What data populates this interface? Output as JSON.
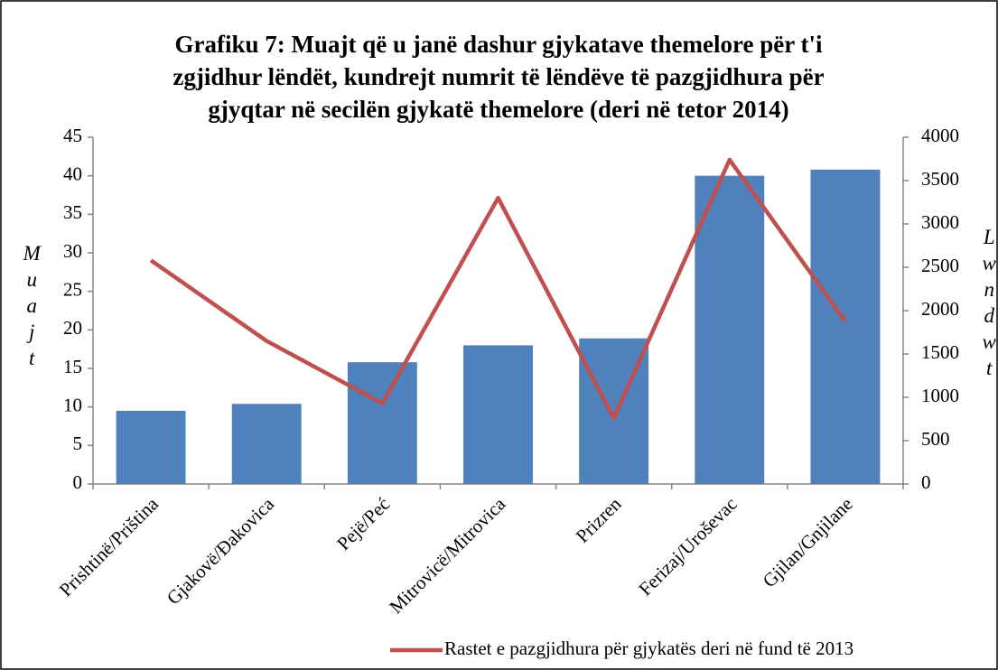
{
  "chart_data": {
    "type": "bar+line",
    "title": [
      "Grafiku 7: Muajt që u janë dashur gjykatave themelore për t'i",
      "zgjidhur lëndët, kundrejt numrit të lëndëve të pazgjidhura për",
      "gjyqtar në secilën gjykatë themelore (deri në tetor 2014)"
    ],
    "ylabel": "Muajt",
    "y2label": "Lwndwt",
    "categories": [
      "Prishtinë/Priština",
      "Gjakovë/Đakovica",
      "Pejë/Peć",
      "Mitrovicë/Mitrovica",
      "Prizren",
      "Ferizaj/Uroševac",
      "Gjilan/Gnjilane"
    ],
    "series": [
      {
        "type": "bar",
        "color": "#4f81bd",
        "values": [
          9.5,
          10.4,
          15.8,
          18,
          18.9,
          40,
          40.8
        ]
      },
      {
        "type": "line",
        "axis": "y2",
        "name": "Rastet e pazgjidhura për gjykatës deri në fund të 2013",
        "color": "#c0504d",
        "values": [
          2580,
          1650,
          930,
          3300,
          760,
          3740,
          1875
        ]
      }
    ],
    "ylim": [
      0,
      45
    ],
    "yticks": [
      0,
      5,
      10,
      15,
      20,
      25,
      30,
      35,
      40,
      45
    ],
    "y2lim": [
      0,
      4000
    ],
    "y2ticks": [
      0,
      500,
      1000,
      1500,
      2000,
      2500,
      3000,
      3500,
      4000
    ],
    "grid": false,
    "legend": "bottom"
  }
}
